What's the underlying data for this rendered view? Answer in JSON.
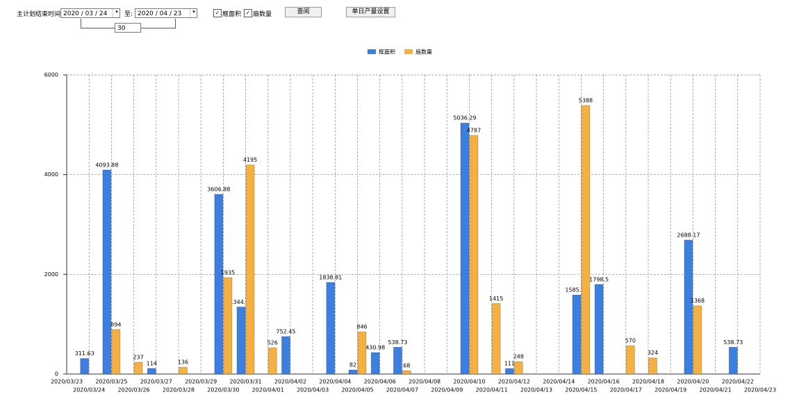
{
  "controls": {
    "date_label": "主计划结束时间:",
    "start_date": "2020 / 03 / 24",
    "to_label": "至:",
    "end_date": "2020 / 04 / 23",
    "checkbox_area": "框面积",
    "checkbox_count": "扇数量",
    "query_button": "查阅",
    "settings_button": "单日产量设置",
    "days_input": "30"
  },
  "chart_data": {
    "type": "bar",
    "categories": [
      "2020/03/23",
      "2020/03/24",
      "2020/03/25",
      "2020/03/26",
      "2020/03/27",
      "2020/03/28",
      "2020/03/29",
      "2020/03/30",
      "2020/03/31",
      "2020/04/01",
      "2020/04/02",
      "2020/04/03",
      "2020/04/04",
      "2020/04/05",
      "2020/04/06",
      "2020/04/07",
      "2020/04/08",
      "2020/04/09",
      "2020/04/10",
      "2020/04/11",
      "2020/04/12",
      "2020/04/13",
      "2020/04/14",
      "2020/04/15",
      "2020/04/16",
      "2020/04/17",
      "2020/04/18",
      "2020/04/19",
      "2020/04/20",
      "2020/04/21",
      "2020/04/22",
      "2020/04/23"
    ],
    "series": [
      {
        "name": "框面积",
        "color": "#3c7fe0",
        "values": [
          null,
          311.63,
          4093.88,
          null,
          114,
          null,
          null,
          3606.88,
          1344.95,
          null,
          752.45,
          null,
          1838.81,
          82,
          430.98,
          538.73,
          null,
          null,
          5036.29,
          null,
          111,
          null,
          null,
          1585.96,
          1798.5,
          null,
          null,
          null,
          2688.17,
          null,
          538.73,
          null
        ]
      },
      {
        "name": "扇数量",
        "color": "#f4b042",
        "values": [
          null,
          null,
          894,
          237,
          null,
          136,
          null,
          1935,
          4195,
          526,
          null,
          null,
          null,
          846,
          null,
          68,
          null,
          null,
          4787,
          1415,
          248,
          null,
          null,
          5388,
          null,
          570,
          324,
          null,
          1368,
          null,
          null,
          null
        ]
      }
    ],
    "ylim": [
      0,
      6000
    ],
    "yticks": [
      0,
      2000,
      4000,
      6000
    ],
    "grid": true,
    "legend": "top"
  }
}
